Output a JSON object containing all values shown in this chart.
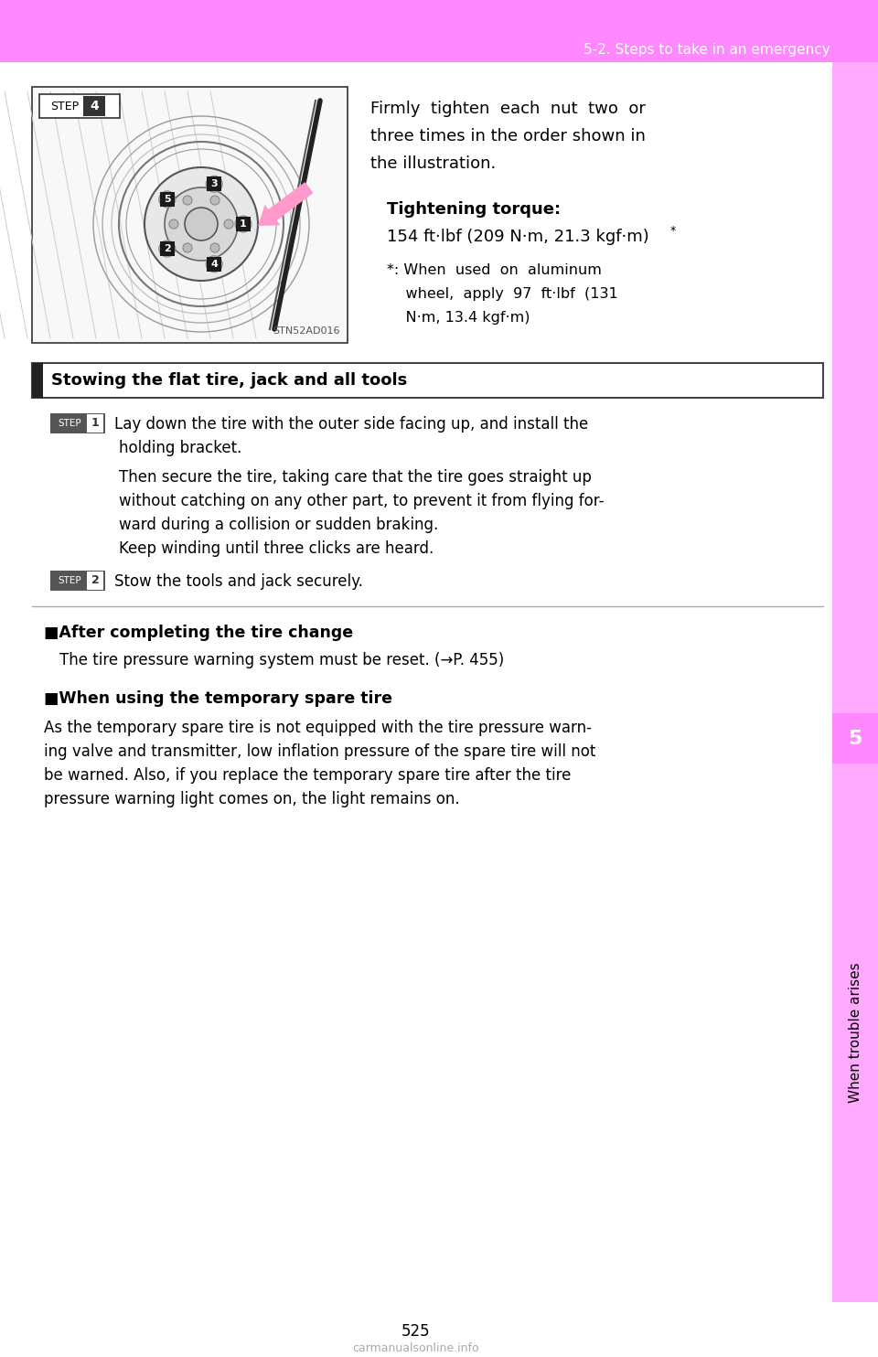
{
  "page_bg": "#ffffff",
  "header_bg": "#ff88ff",
  "header_text": "5-2. Steps to take in an emergency",
  "header_text_color": "#ffffff",
  "right_sidebar_bg": "#ffaaff",
  "right_sidebar_dark_bg": "#ff88ff",
  "page_number": "525",
  "sidebar_label": "5",
  "sidebar_text": "When trouble arises",
  "sidebar_text_color": "#000000",
  "body_text_color": "#000000",
  "image_caption": "STN52AD016",
  "right_text_line1": "Firmly  tighten  each  nut  two  or",
  "right_text_line2": "three times in the order shown in",
  "right_text_line3": "the illustration.",
  "tightening_label": "Tightening torque:",
  "tightening_value": "154 ft·lbf (209 N·m, 21.3 kgf·m)",
  "tightening_star": "*",
  "footnote_line1": "*: When  used  on  aluminum",
  "footnote_line2": "    wheel,  apply  97  ft·lbf  (131",
  "footnote_line3": "    N·m, 13.4 kgf·m)",
  "stowing_title": "Stowing the flat tire, jack and all tools",
  "step1_text_a": "Lay down the tire with the outer side facing up, and install the",
  "step1_text_b": "holding bracket.",
  "step1_para": "Then secure the tire, taking care that the tire goes straight up\nwithout catching on any other part, to prevent it from flying for-\nward during a collision or sudden braking.\nKeep winding until three clicks are heard.",
  "step2_text": "Stow the tools and jack securely.",
  "after_title": "■After completing the tire change",
  "after_text": "The tire pressure warning system must be reset. (→P. 455)",
  "when_title": "■When using the temporary spare tire",
  "when_text": "As the temporary spare tire is not equipped with the tire pressure warn-\ning valve and transmitter, low inflation pressure of the spare tire will not\nbe warned. Also, if you replace the temporary spare tire after the tire\npressure warning light comes on, the light remains on.",
  "watermark": "carmanualsonline.info"
}
